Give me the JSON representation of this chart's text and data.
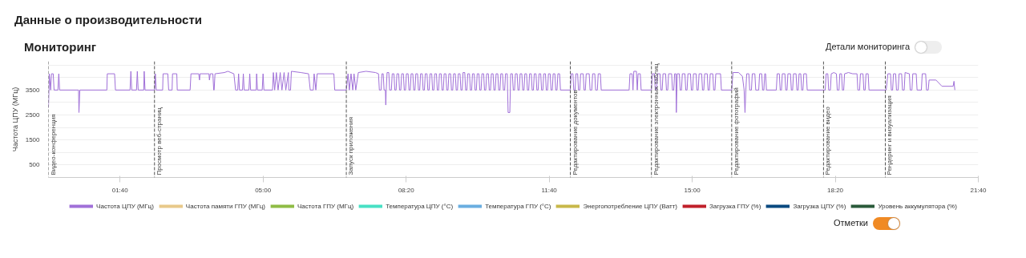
{
  "chart_data": {
    "type": "line",
    "title": "Данные о производительности",
    "subtitle": "Мониторинг",
    "ylabel": "Частота ЦПУ (МГц)",
    "annotations": [
      "Детали мониторинга",
      "Отметки"
    ],
    "xlim": [
      0,
      21.6667
    ],
    "xticks": [
      {
        "value": 1.6667,
        "label": "01:40"
      },
      {
        "value": 5,
        "label": "05:00"
      },
      {
        "value": 8.3333,
        "label": "08:20"
      },
      {
        "value": 11.6667,
        "label": "11:40"
      },
      {
        "value": 15,
        "label": "15:00"
      },
      {
        "value": 18.3333,
        "label": "18:20"
      },
      {
        "value": 21.6667,
        "label": "21:40"
      }
    ],
    "ylim": [
      0,
      4650
    ],
    "yticks": [
      500,
      {
        "value": 1000,
        "label": null
      },
      1500,
      {
        "value": 2000,
        "label": null
      },
      2500,
      {
        "value": 3000,
        "label": null
      },
      3500,
      {
        "value": 4000,
        "label": null
      },
      {
        "value": 4500,
        "label": null
      }
    ],
    "grid": "y",
    "legend": "bottom",
    "marker": "none",
    "line_style": "solid",
    "ref_lines": [
      {
        "axis": "x",
        "value": 0,
        "label": "Видео-конференция",
        "line_style": "dashed",
        "color": "#555555"
      },
      {
        "axis": "x",
        "value": 2.47,
        "label": "Просмотр веб-страниц",
        "line_style": "dashed",
        "color": "#555555"
      },
      {
        "axis": "x",
        "value": 6.94,
        "label": "Запуск приложения",
        "line_style": "dashed",
        "color": "#555555"
      },
      {
        "axis": "x",
        "value": 12.16,
        "label": "Редактирование документов",
        "line_style": "dashed",
        "color": "#555555"
      },
      {
        "axis": "x",
        "value": 14.05,
        "label": "Редактирование электронных таблиц",
        "line_style": "dashed",
        "color": "#555555"
      },
      {
        "axis": "x",
        "value": 15.92,
        "label": "Редактирование фотографий",
        "line_style": "dashed",
        "color": "#555555"
      },
      {
        "axis": "x",
        "value": 18.06,
        "label": "Редактирование видео",
        "line_style": "dashed",
        "color": "#555555"
      },
      {
        "axis": "x",
        "value": 19.5,
        "label": "Рендеринг и визуализация",
        "line_style": "dashed",
        "color": "#555555"
      }
    ],
    "series": [
      {
        "name": "Частота ЦПУ (МГц)",
        "color": "#a070d8",
        "x": [
          0,
          0.02,
          0.05,
          0.07,
          0.11,
          0.13,
          0.22,
          0.24,
          0.26,
          0.7,
          0.71,
          0.73,
          1.36,
          1.37,
          1.54,
          1.56,
          1.9,
          1.92,
          1.94,
          2.05,
          2.07,
          2.09,
          2.22,
          2.23,
          2.25,
          2.47,
          2.49,
          2.51,
          2.66,
          2.67,
          2.78,
          2.8,
          2.88,
          2.89,
          2.99,
          3.0,
          3.3,
          3.32,
          3.5,
          3.52,
          3.53,
          3.74,
          3.75,
          3.77,
          3.83,
          3.85,
          3.86,
          3.88,
          4.1,
          4.18,
          4.32,
          4.36,
          4.41,
          4.43,
          4.45,
          4.52,
          4.54,
          4.56,
          4.67,
          4.69,
          4.71,
          4.84,
          4.85,
          4.87,
          4.98,
          5.0,
          5.02,
          5.22,
          5.24,
          5.27,
          5.31,
          5.35,
          5.4,
          5.44,
          5.49,
          5.53,
          5.59,
          5.6,
          5.64,
          5.66,
          5.88,
          6.06,
          6.1,
          6.17,
          6.19,
          6.23,
          6.26,
          6.65,
          6.67,
          6.94,
          6.98,
          7.01,
          7.05,
          7.09,
          7.12,
          7.16,
          7.22,
          7.4,
          7.62,
          7.69,
          7.71,
          7.75,
          7.77,
          7.8,
          7.82,
          7.85,
          7.86,
          7.87,
          7.89,
          7.93,
          7.95,
          7.99,
          8.01,
          8.05,
          8.07,
          8.1,
          8.12,
          8.16,
          8.18,
          8.21,
          8.23,
          8.27,
          8.29,
          8.32,
          8.34,
          8.38,
          8.4,
          8.43,
          8.45,
          8.49,
          8.51,
          8.54,
          8.56,
          8.6,
          8.62,
          8.65,
          8.67,
          8.71,
          8.73,
          8.76,
          8.78,
          8.82,
          8.84,
          8.87,
          8.89,
          8.93,
          8.95,
          8.98,
          9.0,
          9.04,
          9.06,
          9.09,
          9.11,
          9.15,
          9.17,
          9.2,
          9.22,
          9.26,
          9.28,
          9.31,
          9.33,
          9.37,
          9.39,
          9.42,
          9.44,
          9.48,
          9.5,
          9.53,
          9.55,
          9.59,
          9.61,
          9.64,
          9.66,
          9.7,
          9.72,
          9.75,
          9.77,
          9.81,
          9.83,
          9.86,
          9.88,
          9.92,
          9.94,
          9.97,
          9.99,
          10.03,
          10.05,
          10.08,
          10.1,
          10.14,
          10.16,
          10.19,
          10.21,
          10.25,
          10.27,
          10.3,
          10.32,
          10.36,
          10.38,
          10.41,
          10.43,
          10.47,
          10.49,
          10.52,
          10.54,
          10.58,
          10.6,
          10.63,
          10.65,
          10.69,
          10.71,
          10.75,
          10.77,
          10.81,
          10.83,
          10.86,
          10.88,
          10.92,
          10.94,
          10.97,
          10.99,
          11.03,
          11.05,
          11.08,
          11.1,
          11.14,
          11.16,
          11.19,
          11.21,
          11.25,
          11.27,
          11.3,
          11.32,
          11.36,
          11.38,
          11.41,
          11.43,
          11.47,
          11.49,
          11.52,
          11.54,
          11.58,
          11.6,
          11.63,
          11.65,
          11.69,
          11.71,
          11.74,
          11.76,
          11.8,
          11.82,
          11.85,
          11.87,
          11.91,
          11.93,
          12.16,
          12.18,
          12.22,
          12.24,
          12.27,
          12.29,
          12.33,
          12.35,
          12.38,
          12.4,
          12.46,
          12.48,
          12.51,
          12.53,
          12.6,
          12.62,
          12.66,
          12.68,
          12.73,
          12.75,
          12.79,
          12.81,
          12.86,
          12.88,
          13.53,
          13.55,
          13.6,
          13.62,
          13.64,
          13.7,
          13.72,
          13.74,
          13.79,
          13.81,
          14.05,
          14.07,
          14.12,
          14.14,
          14.17,
          14.19,
          14.25,
          14.27,
          14.3,
          14.32,
          14.38,
          14.4,
          14.43,
          14.45,
          14.52,
          14.54,
          14.57,
          14.59,
          14.62,
          14.63,
          14.65,
          14.7,
          14.72,
          14.75,
          14.77,
          14.83,
          14.85,
          14.88,
          14.9,
          14.96,
          14.98,
          15.01,
          15.03,
          15.09,
          15.11,
          15.14,
          15.16,
          15.22,
          15.24,
          15.27,
          15.29,
          15.35,
          15.37,
          15.4,
          15.42,
          15.48,
          15.5,
          15.53,
          15.55,
          15.66,
          15.68,
          15.92,
          15.95,
          16.08,
          16.17,
          16.21,
          16.23,
          16.25,
          16.27,
          16.32,
          16.34,
          16.38,
          16.4,
          16.46,
          16.48,
          16.55,
          16.57,
          16.62,
          16.64,
          16.67,
          16.69,
          16.71,
          16.73,
          16.96,
          16.98,
          17.03,
          17.05,
          17.08,
          17.1,
          17.16,
          17.18,
          17.21,
          17.23,
          17.29,
          17.31,
          17.34,
          17.36,
          17.42,
          17.44,
          17.47,
          17.49,
          17.53,
          17.55,
          17.58,
          17.6,
          17.66,
          17.68,
          18.1,
          18.12,
          18.16,
          18.18,
          18.22,
          18.24,
          18.3,
          18.36,
          18.38,
          18.42,
          18.44,
          18.48,
          18.5,
          18.53,
          18.55,
          18.64,
          18.74,
          18.84,
          18.86,
          18.9,
          18.92,
          18.98,
          19.0,
          19.03,
          19.05,
          19.1,
          19.12,
          19.52,
          19.56,
          19.62,
          19.64,
          19.67,
          19.69,
          19.74,
          19.76,
          19.8,
          19.82,
          19.88,
          19.9,
          19.94,
          19.96,
          20.06,
          20.08,
          20.12,
          20.14,
          20.22,
          20.24,
          20.34,
          20.36,
          20.44,
          20.46,
          20.5,
          20.52,
          20.68,
          20.82,
          21.08,
          21.1,
          21.12
        ],
        "values": [
          2800,
          4150,
          3500,
          4150,
          4150,
          3500,
          3500,
          4150,
          3500,
          3500,
          2600,
          3500,
          3500,
          4150,
          4150,
          3500,
          3500,
          4250,
          3500,
          3500,
          4250,
          3500,
          3500,
          4250,
          3500,
          3500,
          4150,
          3500,
          3500,
          4150,
          4150,
          3500,
          3500,
          4150,
          4150,
          3500,
          3500,
          4150,
          4150,
          3900,
          4150,
          4150,
          3900,
          4150,
          4150,
          3500,
          3500,
          4150,
          4200,
          4250,
          4150,
          3500,
          3500,
          4150,
          3500,
          3500,
          4150,
          3500,
          3500,
          4150,
          3500,
          3500,
          4150,
          3500,
          3500,
          4150,
          3500,
          3500,
          4200,
          3500,
          4200,
          3500,
          4200,
          3500,
          4200,
          3500,
          4200,
          3500,
          3500,
          4250,
          4200,
          4150,
          3500,
          3500,
          4150,
          3500,
          4150,
          4150,
          3500,
          3500,
          4150,
          3500,
          4150,
          3500,
          4150,
          3500,
          4200,
          4250,
          4200,
          4150,
          3500,
          3500,
          4150,
          4150,
          3500,
          3500,
          2900,
          3500,
          4200,
          4200,
          3500,
          3500,
          4150,
          4150,
          3500,
          3500,
          4150,
          4150,
          3500,
          3500,
          4150,
          4150,
          3500,
          3500,
          4150,
          4150,
          3500,
          3500,
          4150,
          4150,
          3500,
          3500,
          4150,
          4150,
          3500,
          3500,
          4150,
          4150,
          3500,
          3500,
          4150,
          4150,
          3500,
          3500,
          4150,
          4150,
          3500,
          3500,
          4150,
          4150,
          3500,
          3500,
          4150,
          4150,
          3500,
          3500,
          4150,
          4150,
          3500,
          3500,
          4150,
          4150,
          3500,
          3500,
          4150,
          4150,
          3500,
          3500,
          4150,
          4150,
          3500,
          3500,
          4200,
          4200,
          3500,
          3500,
          4150,
          4150,
          3500,
          3500,
          4150,
          4150,
          3500,
          3500,
          4150,
          4150,
          3500,
          3500,
          4150,
          4150,
          3500,
          3500,
          4150,
          4150,
          3500,
          3500,
          4150,
          4150,
          3500,
          3500,
          4150,
          4150,
          3500,
          3500,
          4150,
          4150,
          3500,
          3500,
          4150,
          4150,
          2600,
          2600,
          4150,
          4150,
          3500,
          3500,
          4150,
          4150,
          3500,
          3500,
          4150,
          4150,
          3500,
          3500,
          4150,
          4150,
          3500,
          3500,
          4150,
          4150,
          3500,
          3500,
          4150,
          4150,
          3500,
          3500,
          4150,
          4150,
          3500,
          3500,
          4150,
          4150,
          3500,
          3500,
          4150,
          4150,
          3500,
          3500,
          4150,
          4150,
          3500,
          3500,
          4150,
          4150,
          3500,
          3500,
          4150,
          4150,
          3500,
          3500,
          4150,
          4150,
          3500,
          3500,
          4150,
          4150,
          3500,
          3500,
          4150,
          4150,
          3500,
          3500,
          4150,
          4150,
          3500,
          3500,
          4150,
          4150,
          3500,
          3500,
          4150,
          4150,
          3500,
          4250,
          4250,
          3500,
          4150,
          4150,
          3500,
          3500,
          4150,
          4150,
          3500,
          3500,
          4150,
          4150,
          3500,
          3500,
          4150,
          4150,
          3500,
          3500,
          4150,
          4150,
          3500,
          3500,
          4150,
          4150,
          2600,
          4150,
          4150,
          3500,
          3500,
          4150,
          4150,
          3500,
          3500,
          4150,
          4150,
          3500,
          3500,
          4150,
          4150,
          3500,
          3500,
          4150,
          4150,
          3500,
          3500,
          4150,
          4150,
          3500,
          3500,
          4150,
          4150,
          3500,
          3500,
          4150,
          4150,
          3500,
          3500,
          4200,
          4200,
          4050,
          3500,
          2600,
          3500,
          4150,
          4150,
          3500,
          3500,
          4150,
          4150,
          3500,
          3500,
          4150,
          4150,
          3500,
          3500,
          4150,
          4150,
          3500,
          3500,
          4150,
          4150,
          3500,
          3500,
          4150,
          4150,
          3500,
          3500,
          4150,
          4150,
          3500,
          3500,
          4150,
          4150,
          3500,
          3500,
          4150,
          4150,
          3500,
          3500,
          4150,
          4150,
          3500,
          3500,
          4150,
          4150,
          3500,
          3500,
          4150,
          4200,
          4150,
          3500,
          3500,
          4150,
          4150,
          3500,
          3500,
          4150,
          4200,
          4150,
          4150,
          3500,
          3500,
          4150,
          4150,
          3500,
          3500,
          4150,
          4150,
          3500,
          3500,
          4150,
          4150,
          3500,
          3500,
          4150,
          4150,
          3500,
          3500,
          4150,
          4150,
          3500,
          3500,
          4200,
          4150,
          3500,
          3500,
          4150,
          4150,
          3500,
          3500,
          4150,
          4150,
          3500,
          3500,
          3900,
          3900,
          3650,
          3650,
          3850,
          3500
        ]
      },
      {
        "name": "Частота памяти ГПУ (МГц)",
        "color": "#e8c98a"
      },
      {
        "name": "Частота ГПУ (МГц)",
        "color": "#8fbc45"
      },
      {
        "name": "Температура ЦПУ (°C)",
        "color": "#48e0c4"
      },
      {
        "name": "Температура ГПУ (°C)",
        "color": "#6aaee0"
      },
      {
        "name": "Энергопотребление ЦПУ (Ватт)",
        "color": "#c8b84a"
      },
      {
        "name": "Загрузка ГПУ (%)",
        "color": "#c0202a"
      },
      {
        "name": "Загрузка ЦПУ (%)",
        "color": "#0a4a80"
      },
      {
        "name": "Уровень аккумулятора (%)",
        "color": "#2a5a3a"
      }
    ]
  }
}
